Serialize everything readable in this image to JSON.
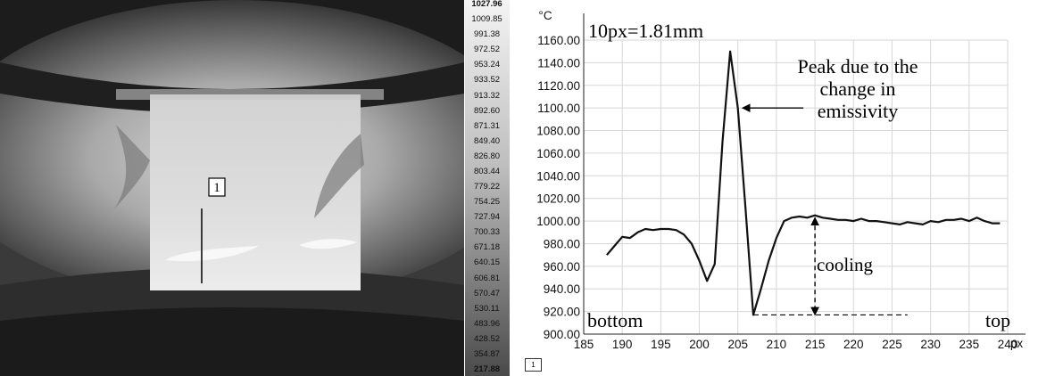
{
  "thermogram": {
    "marker_label": "1"
  },
  "temperature_scale": {
    "labels": [
      "1027.96",
      "1009.85",
      "991.38",
      "972.52",
      "953.24",
      "933.52",
      "913.32",
      "892.60",
      "871.31",
      "849.40",
      "826.80",
      "803.44",
      "779.22",
      "754.25",
      "727.94",
      "700.33",
      "671.18",
      "640.15",
      "606.81",
      "570.47",
      "530.11",
      "483.96",
      "428.52",
      "354.87",
      "217.88"
    ]
  },
  "legend": {
    "chip_label": "1"
  },
  "chart_data": {
    "type": "line",
    "y_unit": "°C",
    "x_unit": "px",
    "xlim": [
      185,
      240
    ],
    "ylim": [
      900,
      1160
    ],
    "x_ticks": [
      185,
      190,
      195,
      200,
      205,
      210,
      215,
      220,
      225,
      230,
      235,
      240
    ],
    "y_ticks": [
      900,
      920,
      940,
      960,
      980,
      1000,
      1020,
      1040,
      1060,
      1080,
      1100,
      1120,
      1140,
      1160
    ],
    "grid": true,
    "series": [
      {
        "x": [
          188,
          189,
          190,
          191,
          192,
          193,
          194,
          195,
          196,
          197,
          198,
          199,
          200,
          201,
          202,
          203,
          204,
          205,
          206,
          207,
          208,
          209,
          210,
          211,
          212,
          213,
          214,
          215,
          216,
          217,
          218,
          219,
          220,
          221,
          222,
          223,
          224,
          225,
          226,
          227,
          228,
          229,
          230,
          231,
          232,
          233,
          234,
          235,
          236,
          237,
          238,
          239
        ],
        "y": [
          970,
          978,
          986,
          985,
          990,
          993,
          992,
          993,
          993,
          992,
          988,
          980,
          965,
          947,
          962,
          1070,
          1150,
          1100,
          1010,
          917,
          940,
          965,
          985,
          1000,
          1003,
          1004,
          1003,
          1005,
          1003,
          1002,
          1001,
          1001,
          1000,
          1002,
          1000,
          1000,
          999,
          998,
          997,
          999,
          998,
          997,
          1000,
          999,
          1001,
          1001,
          1002,
          1000,
          1003,
          1000,
          998,
          998
        ]
      }
    ],
    "annotations": {
      "scale_note": "10px=1.81mm",
      "peak_note": [
        "Peak due to the",
        "change in",
        "emissivity"
      ],
      "cooling": "cooling",
      "bottom": "bottom",
      "top": "top"
    }
  }
}
